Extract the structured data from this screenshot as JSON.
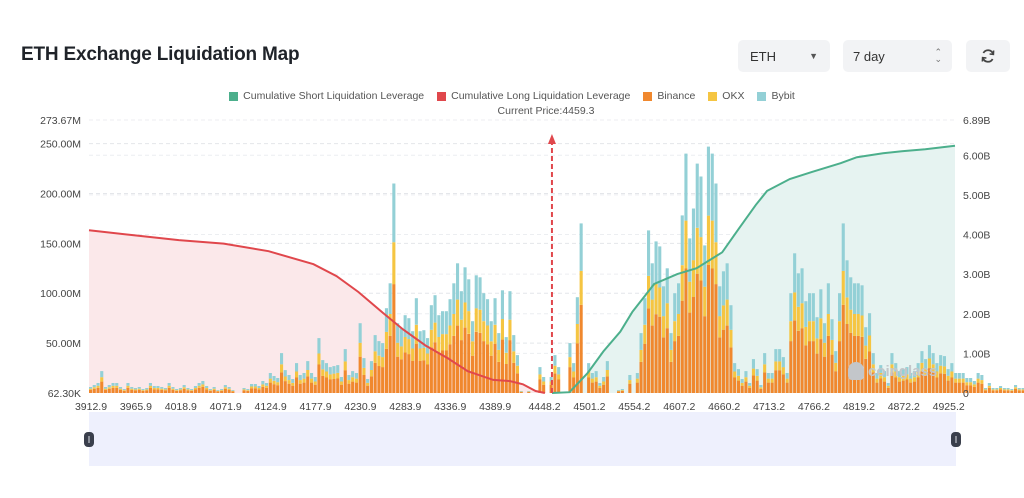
{
  "header": {
    "title": "ETH Exchange Liquidation Map",
    "symbol_select": {
      "value": "ETH",
      "icon": "caret-down-icon"
    },
    "period_select": {
      "value": "7 day",
      "icon": "up-down-arrows-icon"
    },
    "refresh_button": {
      "icon": "refresh-icon"
    }
  },
  "watermark": "coinglass",
  "colors": {
    "short_line": "#4caf8c",
    "short_fill": "#e6f3f1",
    "long_line": "#e0474c",
    "long_fill": "#fbe8ea",
    "binance": "#f0882e",
    "okx": "#f5c542",
    "bybit": "#93d0d6",
    "current_price": "#e0474c"
  },
  "chart_data": {
    "type": "bar",
    "title": "ETH Exchange Liquidation Map",
    "annotation": "Current Price:4459.3",
    "current_price": 4459.3,
    "legend": [
      "Cumulative Short Liquidation Leverage",
      "Cumulative Long Liquidation Leverage",
      "Binance",
      "OKX",
      "Bybit"
    ],
    "legend_position": "top-center",
    "x_ticks": [
      "3912.9",
      "3965.9",
      "4018.9",
      "4071.9",
      "4124.9",
      "4177.9",
      "4230.9",
      "4283.9",
      "4336.9",
      "4389.9",
      "4448.2",
      "4501.2",
      "4554.2",
      "4607.2",
      "4660.2",
      "4713.2",
      "4766.2",
      "4819.2",
      "4872.2",
      "4925.2"
    ],
    "xlim": [
      3912.9,
      4935.0
    ],
    "y_left": {
      "ticks": [
        "62.30K",
        "50.00M",
        "100.00M",
        "150.00M",
        "200.00M",
        "250.00M",
        "273.67M"
      ],
      "tick_values": [
        0,
        50,
        100,
        150,
        200,
        250,
        273.67
      ],
      "unit": "M",
      "ylim": [
        0,
        273.67
      ]
    },
    "y_right": {
      "ticks": [
        "0",
        "1.00B",
        "2.00B",
        "3.00B",
        "4.00B",
        "5.00B",
        "6.00B",
        "6.89B"
      ],
      "tick_values": [
        0,
        1,
        2,
        3,
        4,
        5,
        6,
        6.89
      ],
      "unit": "B",
      "ylim": [
        0,
        6.89
      ]
    },
    "grid": true,
    "bar_price_start": 3912.9,
    "bar_price_step": 4.42,
    "bar_totals_M": [
      6,
      8,
      10,
      22,
      6,
      8,
      10,
      10,
      6,
      4,
      10,
      6,
      5,
      6,
      4,
      5,
      10,
      7,
      7,
      6,
      5,
      10,
      6,
      4,
      5,
      8,
      5,
      4,
      7,
      10,
      12,
      7,
      4,
      6,
      3,
      4,
      8,
      6,
      3,
      0,
      0,
      5,
      4,
      9,
      9,
      7,
      12,
      10,
      20,
      17,
      15,
      40,
      23,
      18,
      14,
      30,
      18,
      20,
      32,
      20,
      16,
      55,
      33,
      30,
      26,
      27,
      28,
      16,
      44,
      18,
      22,
      20,
      70,
      35,
      14,
      32,
      58,
      52,
      50,
      85,
      110,
      210,
      70,
      65,
      78,
      75,
      62,
      95,
      62,
      63,
      55,
      88,
      98,
      78,
      82,
      82,
      94,
      110,
      130,
      102,
      126,
      114,
      72,
      118,
      116,
      100,
      94,
      72,
      95,
      60,
      103,
      56,
      102,
      58,
      38,
      2,
      0,
      2,
      0,
      0,
      26,
      16,
      0,
      16,
      38,
      26,
      0,
      0,
      50,
      30,
      96,
      170,
      0,
      30,
      20,
      22,
      10,
      16,
      32,
      0,
      0,
      3,
      4,
      0,
      18,
      0,
      20,
      60,
      95,
      163,
      130,
      152,
      147,
      107,
      125,
      60,
      100,
      110,
      178,
      240,
      155,
      185,
      230,
      217,
      148,
      247,
      240,
      210,
      107,
      122,
      130,
      88,
      30,
      24,
      14,
      22,
      10,
      34,
      24,
      8,
      40,
      20,
      20,
      44,
      44,
      36,
      20,
      100,
      140,
      120,
      125,
      92,
      100,
      100,
      76,
      104,
      70,
      110,
      74,
      42,
      100,
      170,
      133,
      116,
      110,
      110,
      108,
      66,
      80,
      40,
      20,
      28,
      22,
      10,
      40,
      30,
      22,
      24,
      26,
      20,
      22,
      30,
      42,
      34,
      48,
      40,
      30,
      38,
      37,
      24,
      30,
      20,
      20,
      20,
      15,
      15,
      12,
      20,
      18,
      5,
      10,
      5,
      5,
      7,
      5,
      5,
      4,
      8,
      5,
      5,
      5,
      9,
      5,
      5,
      10,
      5,
      12,
      12,
      10,
      12,
      5,
      4,
      2
    ],
    "series": [
      {
        "name": "Binance",
        "share_of_bar": 0.52
      },
      {
        "name": "OKX",
        "share_of_bar": 0.2
      },
      {
        "name": "Bybit",
        "share_of_bar": 0.28
      }
    ],
    "cumulative_long_B": {
      "x": [
        3912.9,
        3965.9,
        4018.9,
        4071.9,
        4124.9,
        4177.9,
        4205.0,
        4230.9,
        4260.0,
        4283.9,
        4310.0,
        4336.9,
        4360.0,
        4389.9,
        4410.0,
        4425.0,
        4440.0,
        4451.0
      ],
      "y": [
        4.11,
        3.98,
        3.86,
        3.77,
        3.58,
        3.25,
        2.95,
        2.55,
        2.02,
        1.6,
        1.2,
        0.87,
        0.55,
        0.33,
        0.3,
        0.22,
        0.05,
        0.0
      ]
    },
    "cumulative_short_B": {
      "x": [
        4459.3,
        4480.0,
        4501.2,
        4520.0,
        4540.0,
        4554.2,
        4580.0,
        4607.2,
        4630.0,
        4660.2,
        4680.0,
        4700.0,
        4713.2,
        4740.0,
        4766.2,
        4800.0,
        4819.2,
        4850.0,
        4872.2,
        4900.0,
        4935.0
      ],
      "y": [
        0.0,
        0.02,
        0.5,
        1.05,
        1.55,
        2.05,
        2.75,
        3.0,
        3.15,
        3.55,
        4.15,
        4.75,
        5.1,
        5.4,
        5.58,
        5.8,
        5.95,
        6.05,
        6.1,
        6.15,
        6.24
      ]
    }
  }
}
